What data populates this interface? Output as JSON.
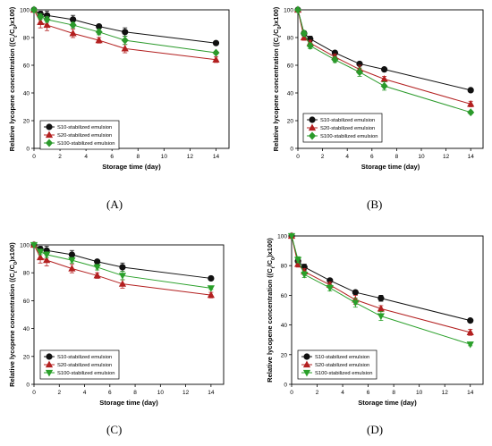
{
  "figure": {
    "panels": [
      {
        "label": "(A)"
      },
      {
        "label": "(B)"
      },
      {
        "label": "(C)"
      },
      {
        "label": "(D)"
      }
    ]
  },
  "colors": {
    "S10": "#111111",
    "S20": "#b32020",
    "S100_A": "#2b9a2b",
    "S100_B": "#2b9a2b",
    "S100_C": "#2aa02a",
    "S100_D": "#2aa02a"
  },
  "chart_data": [
    {
      "type": "line",
      "title": "",
      "xlabel": "Storage time (day)",
      "ylabel": "Relative lycopene concentration ((C_t/C_0)x100)",
      "xlim": [
        0,
        15
      ],
      "ylim": [
        0,
        100
      ],
      "xticks": [
        0,
        2,
        4,
        6,
        8,
        10,
        12,
        14
      ],
      "yticks": [
        0,
        20,
        40,
        60,
        80,
        100
      ],
      "legend_position": "bottom-left",
      "series": [
        {
          "name": "S10-stabilized emulsion",
          "marker": "circle",
          "color_key": "S10",
          "x": [
            0,
            0.5,
            1,
            3,
            5,
            7,
            14
          ],
          "y": [
            100,
            97,
            96,
            93,
            88,
            84,
            76
          ],
          "err": [
            0,
            2,
            3,
            3,
            1,
            3,
            1
          ]
        },
        {
          "name": "S20-stabilized emulsion",
          "marker": "triangle-up",
          "color_key": "S20",
          "x": [
            0,
            0.5,
            1,
            3,
            5,
            7,
            14
          ],
          "y": [
            100,
            91,
            89,
            83,
            78,
            72,
            64
          ],
          "err": [
            0,
            4,
            4,
            3,
            2,
            3,
            2
          ]
        },
        {
          "name": "S100-stabilized emulsion",
          "marker": "diamond",
          "color_key": "S100_A",
          "x": [
            0,
            0.5,
            1,
            3,
            5,
            7,
            14
          ],
          "y": [
            100,
            95,
            93,
            89,
            84,
            78,
            69
          ],
          "err": [
            0,
            2,
            2,
            2,
            2,
            3,
            1
          ]
        }
      ]
    },
    {
      "type": "line",
      "title": "",
      "xlabel": "Storage time (day)",
      "ylabel": "Relative lycopene concentration ((C_t/C_0)x100)",
      "xlim": [
        0,
        15
      ],
      "ylim": [
        0,
        100
      ],
      "xticks": [
        0,
        2,
        4,
        6,
        8,
        10,
        12,
        14
      ],
      "yticks": [
        0,
        20,
        40,
        60,
        80,
        100
      ],
      "legend_position": "bottom-left",
      "series": [
        {
          "name": "S10-stabilized emulsion",
          "marker": "circle",
          "color_key": "S10",
          "x": [
            0,
            0.5,
            1,
            3,
            5,
            7,
            14
          ],
          "y": [
            100,
            83,
            79,
            69,
            61,
            57,
            42
          ],
          "err": [
            0,
            1,
            2,
            1,
            1,
            1,
            1
          ]
        },
        {
          "name": "S20-stabilized emulsion",
          "marker": "triangle-up",
          "color_key": "S20",
          "x": [
            0,
            0.5,
            1,
            3,
            5,
            7,
            14
          ],
          "y": [
            100,
            80,
            76,
            66,
            57,
            50,
            32
          ],
          "err": [
            0,
            2,
            2,
            2,
            3,
            2,
            2
          ]
        },
        {
          "name": "S100-stabilized emulsion",
          "marker": "diamond",
          "color_key": "S100_B",
          "x": [
            0,
            0.5,
            1,
            3,
            5,
            7,
            14
          ],
          "y": [
            100,
            83,
            74,
            64,
            55,
            45,
            26
          ],
          "err": [
            0,
            2,
            2,
            2,
            3,
            3,
            1
          ]
        }
      ]
    },
    {
      "type": "line",
      "title": "",
      "xlabel": "Storage time (day)",
      "ylabel": "Relative lycopene concentration ((C_t/C_0)x100)",
      "xlim": [
        0,
        15
      ],
      "ylim": [
        0,
        100
      ],
      "xticks": [
        0,
        2,
        4,
        6,
        8,
        10,
        12,
        14
      ],
      "yticks": [
        0,
        20,
        40,
        60,
        80,
        100
      ],
      "legend_position": "bottom-left",
      "series": [
        {
          "name": "S10-stabilized emulsion",
          "marker": "circle",
          "color_key": "S10",
          "x": [
            0,
            0.5,
            1,
            3,
            5,
            7,
            14
          ],
          "y": [
            100,
            97,
            96,
            93,
            88,
            84,
            76
          ],
          "err": [
            0,
            2,
            3,
            3,
            1,
            3,
            1
          ]
        },
        {
          "name": "S20-stabilized emulsion",
          "marker": "triangle-up",
          "color_key": "S20",
          "x": [
            0,
            0.5,
            1,
            3,
            5,
            7,
            14
          ],
          "y": [
            100,
            91,
            89,
            83,
            78,
            72,
            64
          ],
          "err": [
            0,
            4,
            4,
            3,
            2,
            3,
            2
          ]
        },
        {
          "name": "S100-stabilized emulsion",
          "marker": "triangle-down",
          "color_key": "S100_C",
          "x": [
            0,
            0.5,
            1,
            3,
            5,
            7,
            14
          ],
          "y": [
            100,
            95,
            93,
            89,
            84,
            78,
            69
          ],
          "err": [
            0,
            2,
            2,
            2,
            2,
            3,
            1
          ]
        }
      ]
    },
    {
      "type": "line",
      "title": "",
      "xlabel": "Storage time (day)",
      "ylabel": "Relative lycopene concentration ((C_t/C_0)x100)",
      "xlim": [
        0,
        15
      ],
      "ylim": [
        0,
        100
      ],
      "xticks": [
        0,
        2,
        4,
        6,
        8,
        10,
        12,
        14
      ],
      "yticks": [
        0,
        20,
        40,
        60,
        80,
        100
      ],
      "legend_position": "bottom-left",
      "series": [
        {
          "name": "S10-stabilized emulsion",
          "marker": "circle",
          "color_key": "S10",
          "x": [
            0,
            0.5,
            1,
            3,
            5,
            7,
            14
          ],
          "y": [
            100,
            83,
            79,
            70,
            62,
            58,
            43
          ],
          "err": [
            0,
            1,
            2,
            1,
            1,
            2,
            1
          ]
        },
        {
          "name": "S20-stabilized emulsion",
          "marker": "triangle-up",
          "color_key": "S20",
          "x": [
            0,
            0.5,
            1,
            3,
            5,
            7,
            14
          ],
          "y": [
            100,
            81,
            76,
            67,
            57,
            51,
            35
          ],
          "err": [
            0,
            2,
            2,
            2,
            3,
            2,
            2
          ]
        },
        {
          "name": "S100-stabilized emulsion",
          "marker": "triangle-down",
          "color_key": "S100_D",
          "x": [
            0,
            0.5,
            1,
            3,
            5,
            7,
            14
          ],
          "y": [
            100,
            84,
            74,
            65,
            55,
            46,
            27
          ],
          "err": [
            0,
            2,
            2,
            2,
            3,
            3,
            1
          ]
        }
      ]
    }
  ]
}
